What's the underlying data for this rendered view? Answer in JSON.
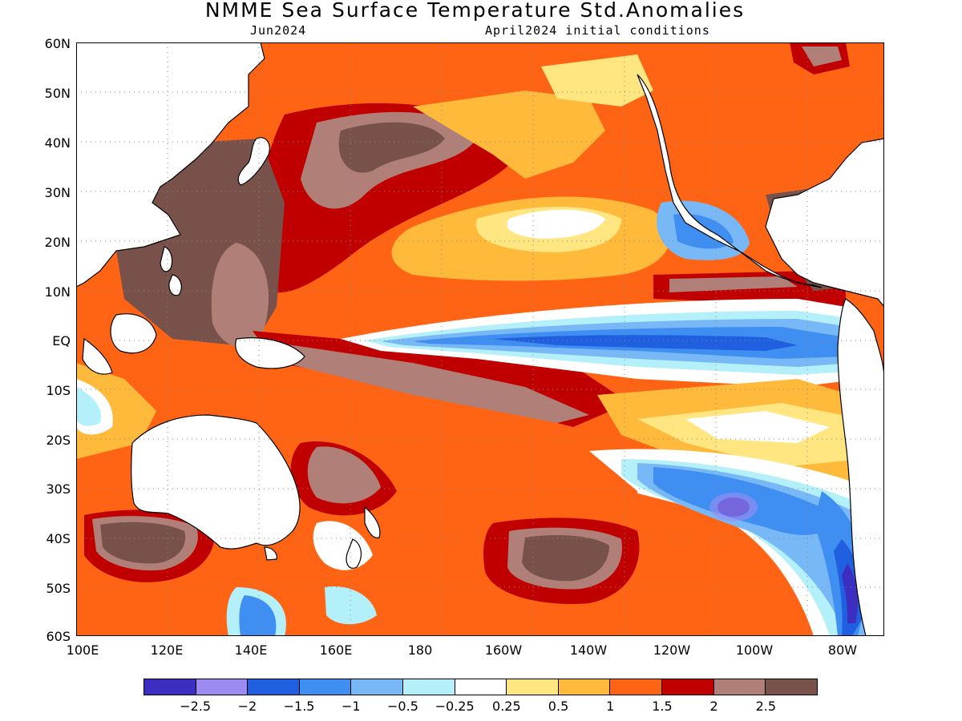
{
  "header": {
    "title": "NMME Sea Surface Temperature Std.Anomalies",
    "target_month": "Jun2024",
    "initial_conditions": "April2024 initial conditions"
  },
  "map": {
    "y_ticks": [
      "60N",
      "50N",
      "40N",
      "30N",
      "20N",
      "10N",
      "EQ",
      "10S",
      "20S",
      "30S",
      "40S",
      "50S",
      "60S"
    ],
    "x_ticks": [
      "100E",
      "120E",
      "140E",
      "160E",
      "180",
      "160W",
      "140W",
      "120W",
      "100W",
      "80W"
    ],
    "lat_range": [
      -60,
      60
    ],
    "lon_range": [
      "100E",
      "70W"
    ],
    "grid": "dotted"
  },
  "colorbar": {
    "colors": [
      "#3c2ec0",
      "#9c8cf2",
      "#1f5fe0",
      "#3f8ef2",
      "#78b8f6",
      "#b4f0fa",
      "#ffffff",
      "#ffe680",
      "#ffba3c",
      "#ff6414",
      "#c00000",
      "#b08078",
      "#78524a"
    ],
    "labels": [
      "−2.5",
      "−2",
      "−1.5",
      "−1",
      "−0.5",
      "−0.25",
      "0.25",
      "0.5",
      "1",
      "1.5",
      "2",
      "2.5"
    ]
  }
}
